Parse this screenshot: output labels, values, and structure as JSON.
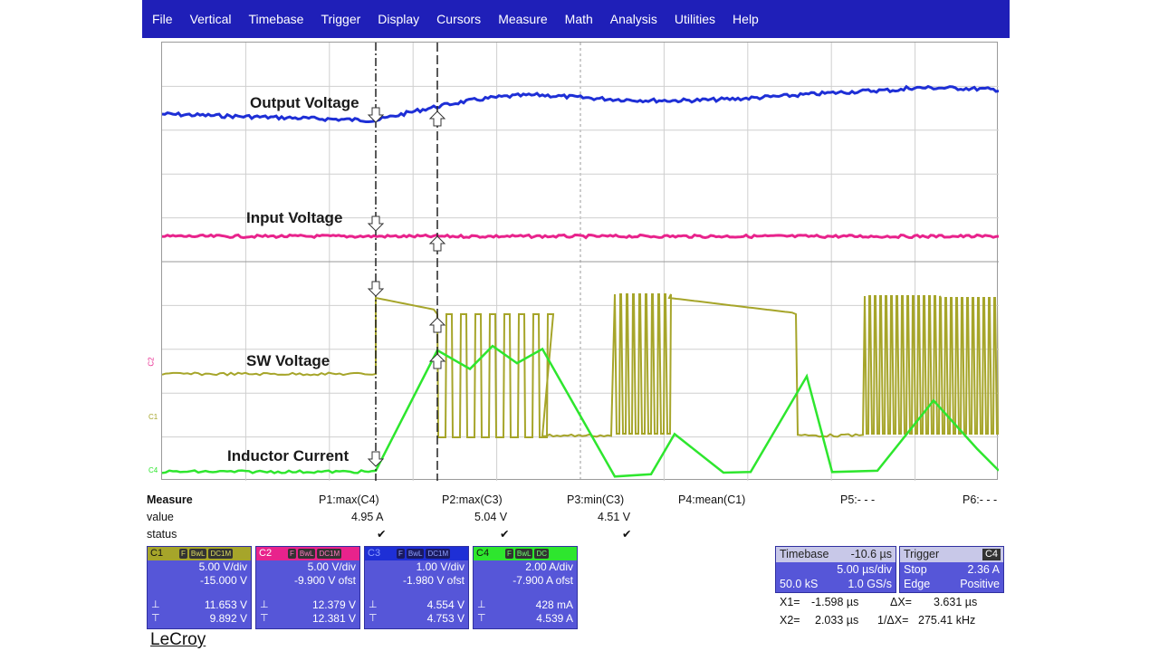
{
  "menu": [
    "File",
    "Vertical",
    "Timebase",
    "Trigger",
    "Display",
    "Cursors",
    "Measure",
    "Math",
    "Analysis",
    "Utilities",
    "Help"
  ],
  "traces": {
    "output": "Output Voltage",
    "input": "Input Voltage",
    "sw": "SW Voltage",
    "inductor": "Inductor Current"
  },
  "channel_markers": {
    "c2": "C2",
    "c1": "C1",
    "c4": "C4"
  },
  "colors": {
    "c1": "#a6a52a",
    "c2": "#e8238c",
    "c3": "#1e2fd6",
    "c4": "#2ee62e",
    "panel": "#5656d8",
    "menubar": "#1f1fb8"
  },
  "measure": {
    "title": "Measure",
    "row_value": "value",
    "row_status": "status",
    "params": [
      {
        "name": "P1:max(C4)",
        "value": "4.95 A",
        "status": "✔"
      },
      {
        "name": "P2:max(C3)",
        "value": "5.04 V",
        "status": "✔"
      },
      {
        "name": "P3:min(C3)",
        "value": "4.51 V",
        "status": "✔"
      },
      {
        "name": "P4:mean(C1)",
        "value": "",
        "status": ""
      },
      {
        "name": "P5:- - -",
        "value": "",
        "status": ""
      },
      {
        "name": "P6:- - -",
        "value": "",
        "status": ""
      }
    ]
  },
  "channels": [
    {
      "tag": "C1",
      "pills": [
        "F",
        "BwL",
        "DC1M"
      ],
      "vdiv": "5.00 V/div",
      "ofst": "-15.000 V",
      "low": "11.653 V",
      "high": "9.892 V"
    },
    {
      "tag": "C2",
      "pills": [
        "F",
        "BwL",
        "DC1M"
      ],
      "vdiv": "5.00 V/div",
      "ofst": "-9.900 V ofst",
      "low": "12.379 V",
      "high": "12.381 V"
    },
    {
      "tag": "C3",
      "pills": [
        "F",
        "BwL",
        "DC1M"
      ],
      "vdiv": "1.00 V/div",
      "ofst": "-1.980 V ofst",
      "low": "4.554 V",
      "high": "4.753 V"
    },
    {
      "tag": "C4",
      "pills": [
        "F",
        "BwL",
        "DC"
      ],
      "vdiv": "2.00 A/div",
      "ofst": "-7.900 A ofst",
      "low": "428 mA",
      "high": "4.539 A"
    }
  ],
  "timebase": {
    "label": "Timebase",
    "delay": "-10.6 µs",
    "tdiv": "5.00 µs/div",
    "samples": "50.0 kS",
    "rate": "1.0 GS/s"
  },
  "trigger": {
    "label": "Trigger",
    "channel": "C4",
    "mode": "Stop",
    "level": "2.36 A",
    "type": "Edge",
    "slope": "Positive"
  },
  "cursors": {
    "x1_label": "X1=",
    "x1": "-1.598 µs",
    "dx_label": "ΔX=",
    "dx": "3.631 µs",
    "x2_label": "X2=",
    "x2": "2.033 µs",
    "inv_label": "1/ΔX=",
    "inv": "275.41 kHz"
  },
  "brand": "LeCroy"
}
